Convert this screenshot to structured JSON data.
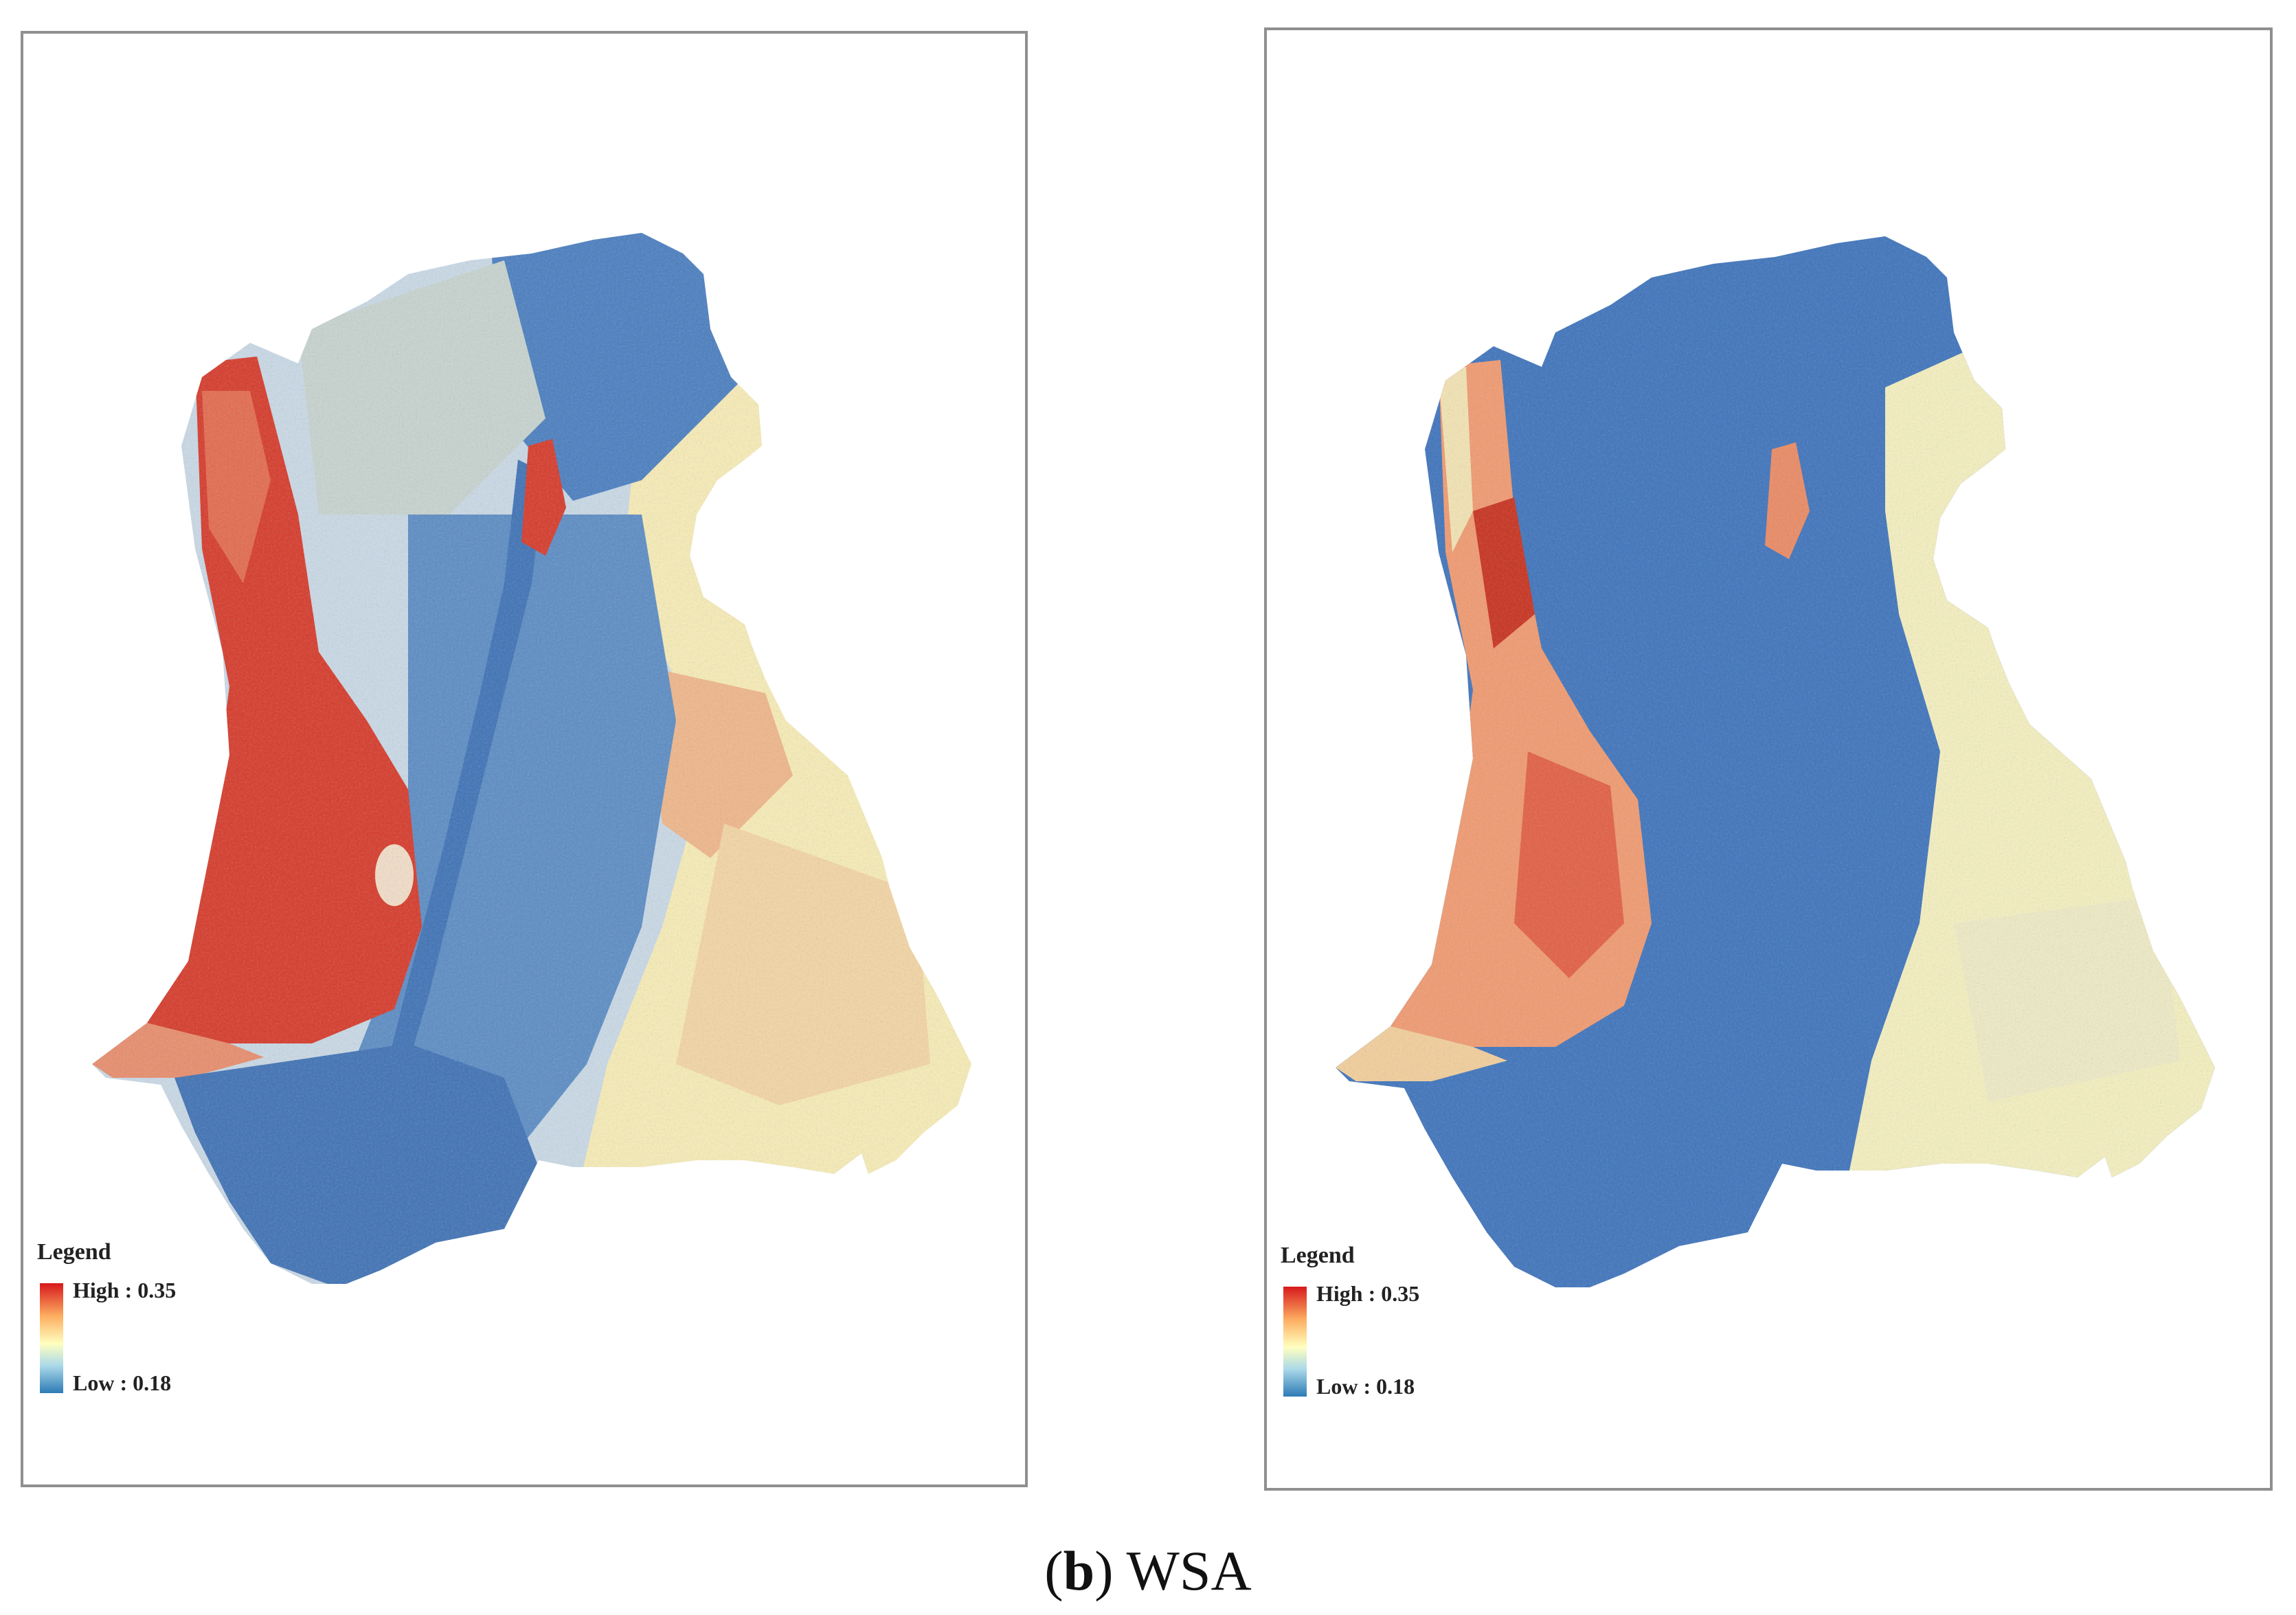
{
  "caption": {
    "open": "(",
    "letter": "b",
    "close": ") ",
    "text": "WSA"
  },
  "maps": [
    {
      "legend": {
        "title": "Legend",
        "high": "High : 0.35",
        "low": "Low : 0.18"
      }
    },
    {
      "legend": {
        "title": "Legend",
        "high": "High : 0.35",
        "low": "Low : 0.18"
      }
    }
  ],
  "colors": {
    "high": "#d7191c",
    "mid_high": "#fdae61",
    "mid": "#ffffbf",
    "mid_low": "#abd9e9",
    "low": "#2c7bb6"
  }
}
